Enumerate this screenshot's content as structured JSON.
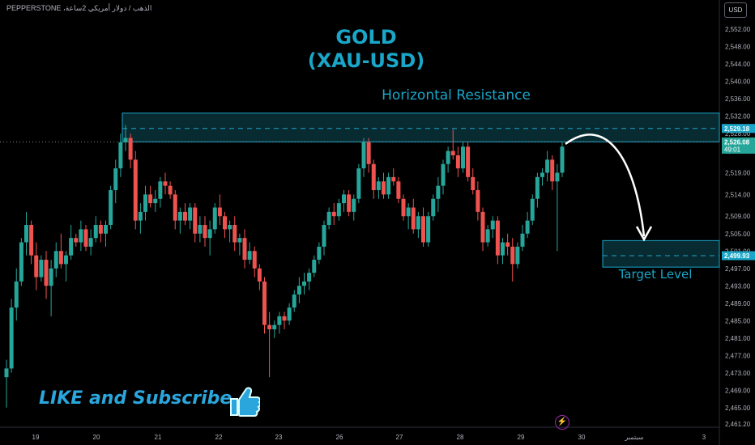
{
  "header": {
    "symbol_line": "PEPPERSTONE ،الذهب / دولار أمريكي 2ساعة",
    "currency_button": "USD"
  },
  "annotations": {
    "title_line1": "GOLD",
    "title_line2": "(XAU-USD)",
    "resistance_label": "Horizontal Resistance",
    "target_label": "Target Level",
    "subscribe_text": "LIKE and Subscribe"
  },
  "icons": {
    "thumbs_up": "thumbs-up-icon",
    "lightning": "lightning-icon"
  },
  "colors": {
    "up_candle": "#26a69a",
    "down_candle": "#ef5350",
    "accent": "#1aa6c8",
    "zone_fill": "#0b3a43",
    "background": "#000000"
  },
  "chart_data": {
    "type": "candlestick",
    "title": "GOLD (XAU-USD)",
    "y_ticks": [
      2552,
      2548,
      2544,
      2540,
      2536,
      2532,
      2528,
      2524,
      2519,
      2514,
      2509,
      2505,
      2501,
      2497,
      2493,
      2489,
      2485,
      2481,
      2477,
      2473,
      2469,
      2465,
      2461.2
    ],
    "y_tick_labels": [
      "2,552.00",
      "2,548.00",
      "2,544.00",
      "2,540.00",
      "2,536.00",
      "2,532.00",
      "2,528.00",
      "2,524.00",
      "2,519.00",
      "2,514.00",
      "2,509.00",
      "2,505.00",
      "2,501.00",
      "2,497.00",
      "2,493.00",
      "2,489.00",
      "2,485.00",
      "2,481.00",
      "2,477.00",
      "2,473.00",
      "2,469.00",
      "2,465.00",
      "2,461.20"
    ],
    "ylim": [
      2460.5,
      2553.5
    ],
    "x_ticks": [
      "19",
      "20",
      "21",
      "22",
      "23",
      "26",
      "27",
      "28",
      "29",
      "30",
      "سبتمبر",
      "3"
    ],
    "price_badges": [
      {
        "label": "2,529.18",
        "value": 2529.18
      },
      {
        "label": "2,526.08",
        "value": 2526.08,
        "sub": "49:01",
        "kind": "current"
      },
      {
        "label": "2,499.93",
        "value": 2499.93
      }
    ],
    "resistance_zone": {
      "top": 2532.7,
      "bottom": 2526.1,
      "level": 2529.18
    },
    "target_zone": {
      "top": 2503.4,
      "bottom": 2497.3,
      "level": 2499.93
    },
    "candles": [
      [
        2472,
        2476,
        2465,
        2474
      ],
      [
        2474,
        2490,
        2473,
        2488
      ],
      [
        2488,
        2497,
        2485,
        2494
      ],
      [
        2494,
        2504,
        2493,
        2503
      ],
      [
        2503,
        2510,
        2500,
        2507
      ],
      [
        2507,
        2508,
        2498,
        2500
      ],
      [
        2500,
        2503,
        2492,
        2495
      ],
      [
        2495,
        2500,
        2494,
        2499
      ],
      [
        2499,
        2501,
        2490,
        2493
      ],
      [
        2493,
        2499,
        2486,
        2497
      ],
      [
        2497,
        2503,
        2495,
        2501
      ],
      [
        2501,
        2505,
        2497,
        2498
      ],
      [
        2498,
        2501,
        2494,
        2500
      ],
      [
        2500,
        2507,
        2499,
        2504
      ],
      [
        2504,
        2505,
        2502,
        2503
      ],
      [
        2503,
        2508,
        2501,
        2506
      ],
      [
        2506,
        2507,
        2501,
        2502
      ],
      [
        2502,
        2506,
        2500,
        2504
      ],
      [
        2504,
        2509,
        2503,
        2507
      ],
      [
        2507,
        2508,
        2503,
        2505
      ],
      [
        2505,
        2508,
        2502,
        2507
      ],
      [
        2507,
        2516,
        2506,
        2515
      ],
      [
        2515,
        2522,
        2512,
        2520
      ],
      [
        2520,
        2528,
        2518,
        2526
      ],
      [
        2526,
        2530,
        2524,
        2527
      ],
      [
        2527,
        2528,
        2520,
        2522
      ],
      [
        2522,
        2524,
        2506,
        2508
      ],
      [
        2508,
        2512,
        2505,
        2510
      ],
      [
        2510,
        2516,
        2508,
        2514
      ],
      [
        2514,
        2516,
        2511,
        2512
      ],
      [
        2512,
        2515,
        2510,
        2513
      ],
      [
        2513,
        2518,
        2511,
        2517
      ],
      [
        2517,
        2519,
        2514,
        2516
      ],
      [
        2516,
        2517,
        2513,
        2514
      ],
      [
        2514,
        2515,
        2506,
        2508
      ],
      [
        2508,
        2511,
        2505,
        2510
      ],
      [
        2510,
        2512,
        2507,
        2508
      ],
      [
        2508,
        2512,
        2506,
        2511
      ],
      [
        2511,
        2512,
        2503,
        2505
      ],
      [
        2505,
        2509,
        2503,
        2507
      ],
      [
        2507,
        2509,
        2502,
        2504
      ],
      [
        2504,
        2508,
        2500,
        2506
      ],
      [
        2506,
        2512,
        2505,
        2511
      ],
      [
        2511,
        2514,
        2507,
        2509
      ],
      [
        2509,
        2510,
        2504,
        2506
      ],
      [
        2506,
        2508,
        2503,
        2507
      ],
      [
        2507,
        2509,
        2501,
        2503
      ],
      [
        2503,
        2505,
        2500,
        2504
      ],
      [
        2504,
        2506,
        2497,
        2499
      ],
      [
        2499,
        2503,
        2498,
        2501
      ],
      [
        2501,
        2502,
        2495,
        2497
      ],
      [
        2497,
        2498,
        2492,
        2494
      ],
      [
        2494,
        2495,
        2482,
        2484
      ],
      [
        2484,
        2487,
        2472,
        2483
      ],
      [
        2483,
        2485,
        2481,
        2484
      ],
      [
        2484,
        2487,
        2482,
        2486
      ],
      [
        2486,
        2487,
        2483,
        2485
      ],
      [
        2485,
        2489,
        2484,
        2488
      ],
      [
        2488,
        2492,
        2487,
        2491
      ],
      [
        2491,
        2495,
        2489,
        2493
      ],
      [
        2493,
        2496,
        2491,
        2494
      ],
      [
        2494,
        2497,
        2492,
        2496
      ],
      [
        2496,
        2500,
        2495,
        2499
      ],
      [
        2499,
        2503,
        2498,
        2502
      ],
      [
        2502,
        2508,
        2500,
        2507
      ],
      [
        2507,
        2511,
        2506,
        2510
      ],
      [
        2510,
        2512,
        2507,
        2509
      ],
      [
        2509,
        2513,
        2508,
        2512
      ],
      [
        2512,
        2515,
        2510,
        2514
      ],
      [
        2514,
        2515,
        2509,
        2510
      ],
      [
        2510,
        2514,
        2508,
        2513
      ],
      [
        2513,
        2521,
        2512,
        2520
      ],
      [
        2520,
        2527,
        2518,
        2526
      ],
      [
        2526,
        2527,
        2519,
        2521
      ],
      [
        2521,
        2522,
        2513,
        2515
      ],
      [
        2515,
        2518,
        2513,
        2517
      ],
      [
        2517,
        2519,
        2513,
        2514
      ],
      [
        2514,
        2519,
        2513,
        2518
      ],
      [
        2518,
        2520,
        2516,
        2517
      ],
      [
        2517,
        2518,
        2512,
        2513
      ],
      [
        2513,
        2514,
        2508,
        2509
      ],
      [
        2509,
        2512,
        2506,
        2511
      ],
      [
        2511,
        2513,
        2505,
        2506
      ],
      [
        2506,
        2510,
        2504,
        2509
      ],
      [
        2509,
        2511,
        2502,
        2503
      ],
      [
        2503,
        2510,
        2502,
        2509
      ],
      [
        2509,
        2514,
        2508,
        2513
      ],
      [
        2513,
        2518,
        2510,
        2516
      ],
      [
        2516,
        2522,
        2514,
        2521
      ],
      [
        2521,
        2525,
        2519,
        2524
      ],
      [
        2524,
        2529,
        2522,
        2523
      ],
      [
        2523,
        2525,
        2518,
        2520
      ],
      [
        2520,
        2526,
        2519,
        2525
      ],
      [
        2525,
        2526,
        2517,
        2518
      ],
      [
        2518,
        2520,
        2514,
        2515
      ],
      [
        2515,
        2517,
        2508,
        2510
      ],
      [
        2510,
        2511,
        2501,
        2503
      ],
      [
        2503,
        2507,
        2502,
        2506
      ],
      [
        2506,
        2509,
        2504,
        2508
      ],
      [
        2508,
        2509,
        2498,
        2500
      ],
      [
        2500,
        2504,
        2498,
        2503
      ],
      [
        2503,
        2505,
        2500,
        2502
      ],
      [
        2502,
        2504,
        2494,
        2498
      ],
      [
        2498,
        2503,
        2497,
        2502
      ],
      [
        2502,
        2507,
        2501,
        2505
      ],
      [
        2505,
        2510,
        2504,
        2508
      ],
      [
        2508,
        2514,
        2507,
        2513
      ],
      [
        2513,
        2519,
        2511,
        2518
      ],
      [
        2518,
        2520,
        2516,
        2519
      ],
      [
        2519,
        2524,
        2517,
        2522
      ],
      [
        2522,
        2523,
        2515,
        2517
      ],
      [
        2517,
        2521,
        2501,
        2519
      ],
      [
        2519,
        2526,
        2518,
        2525
      ]
    ]
  }
}
